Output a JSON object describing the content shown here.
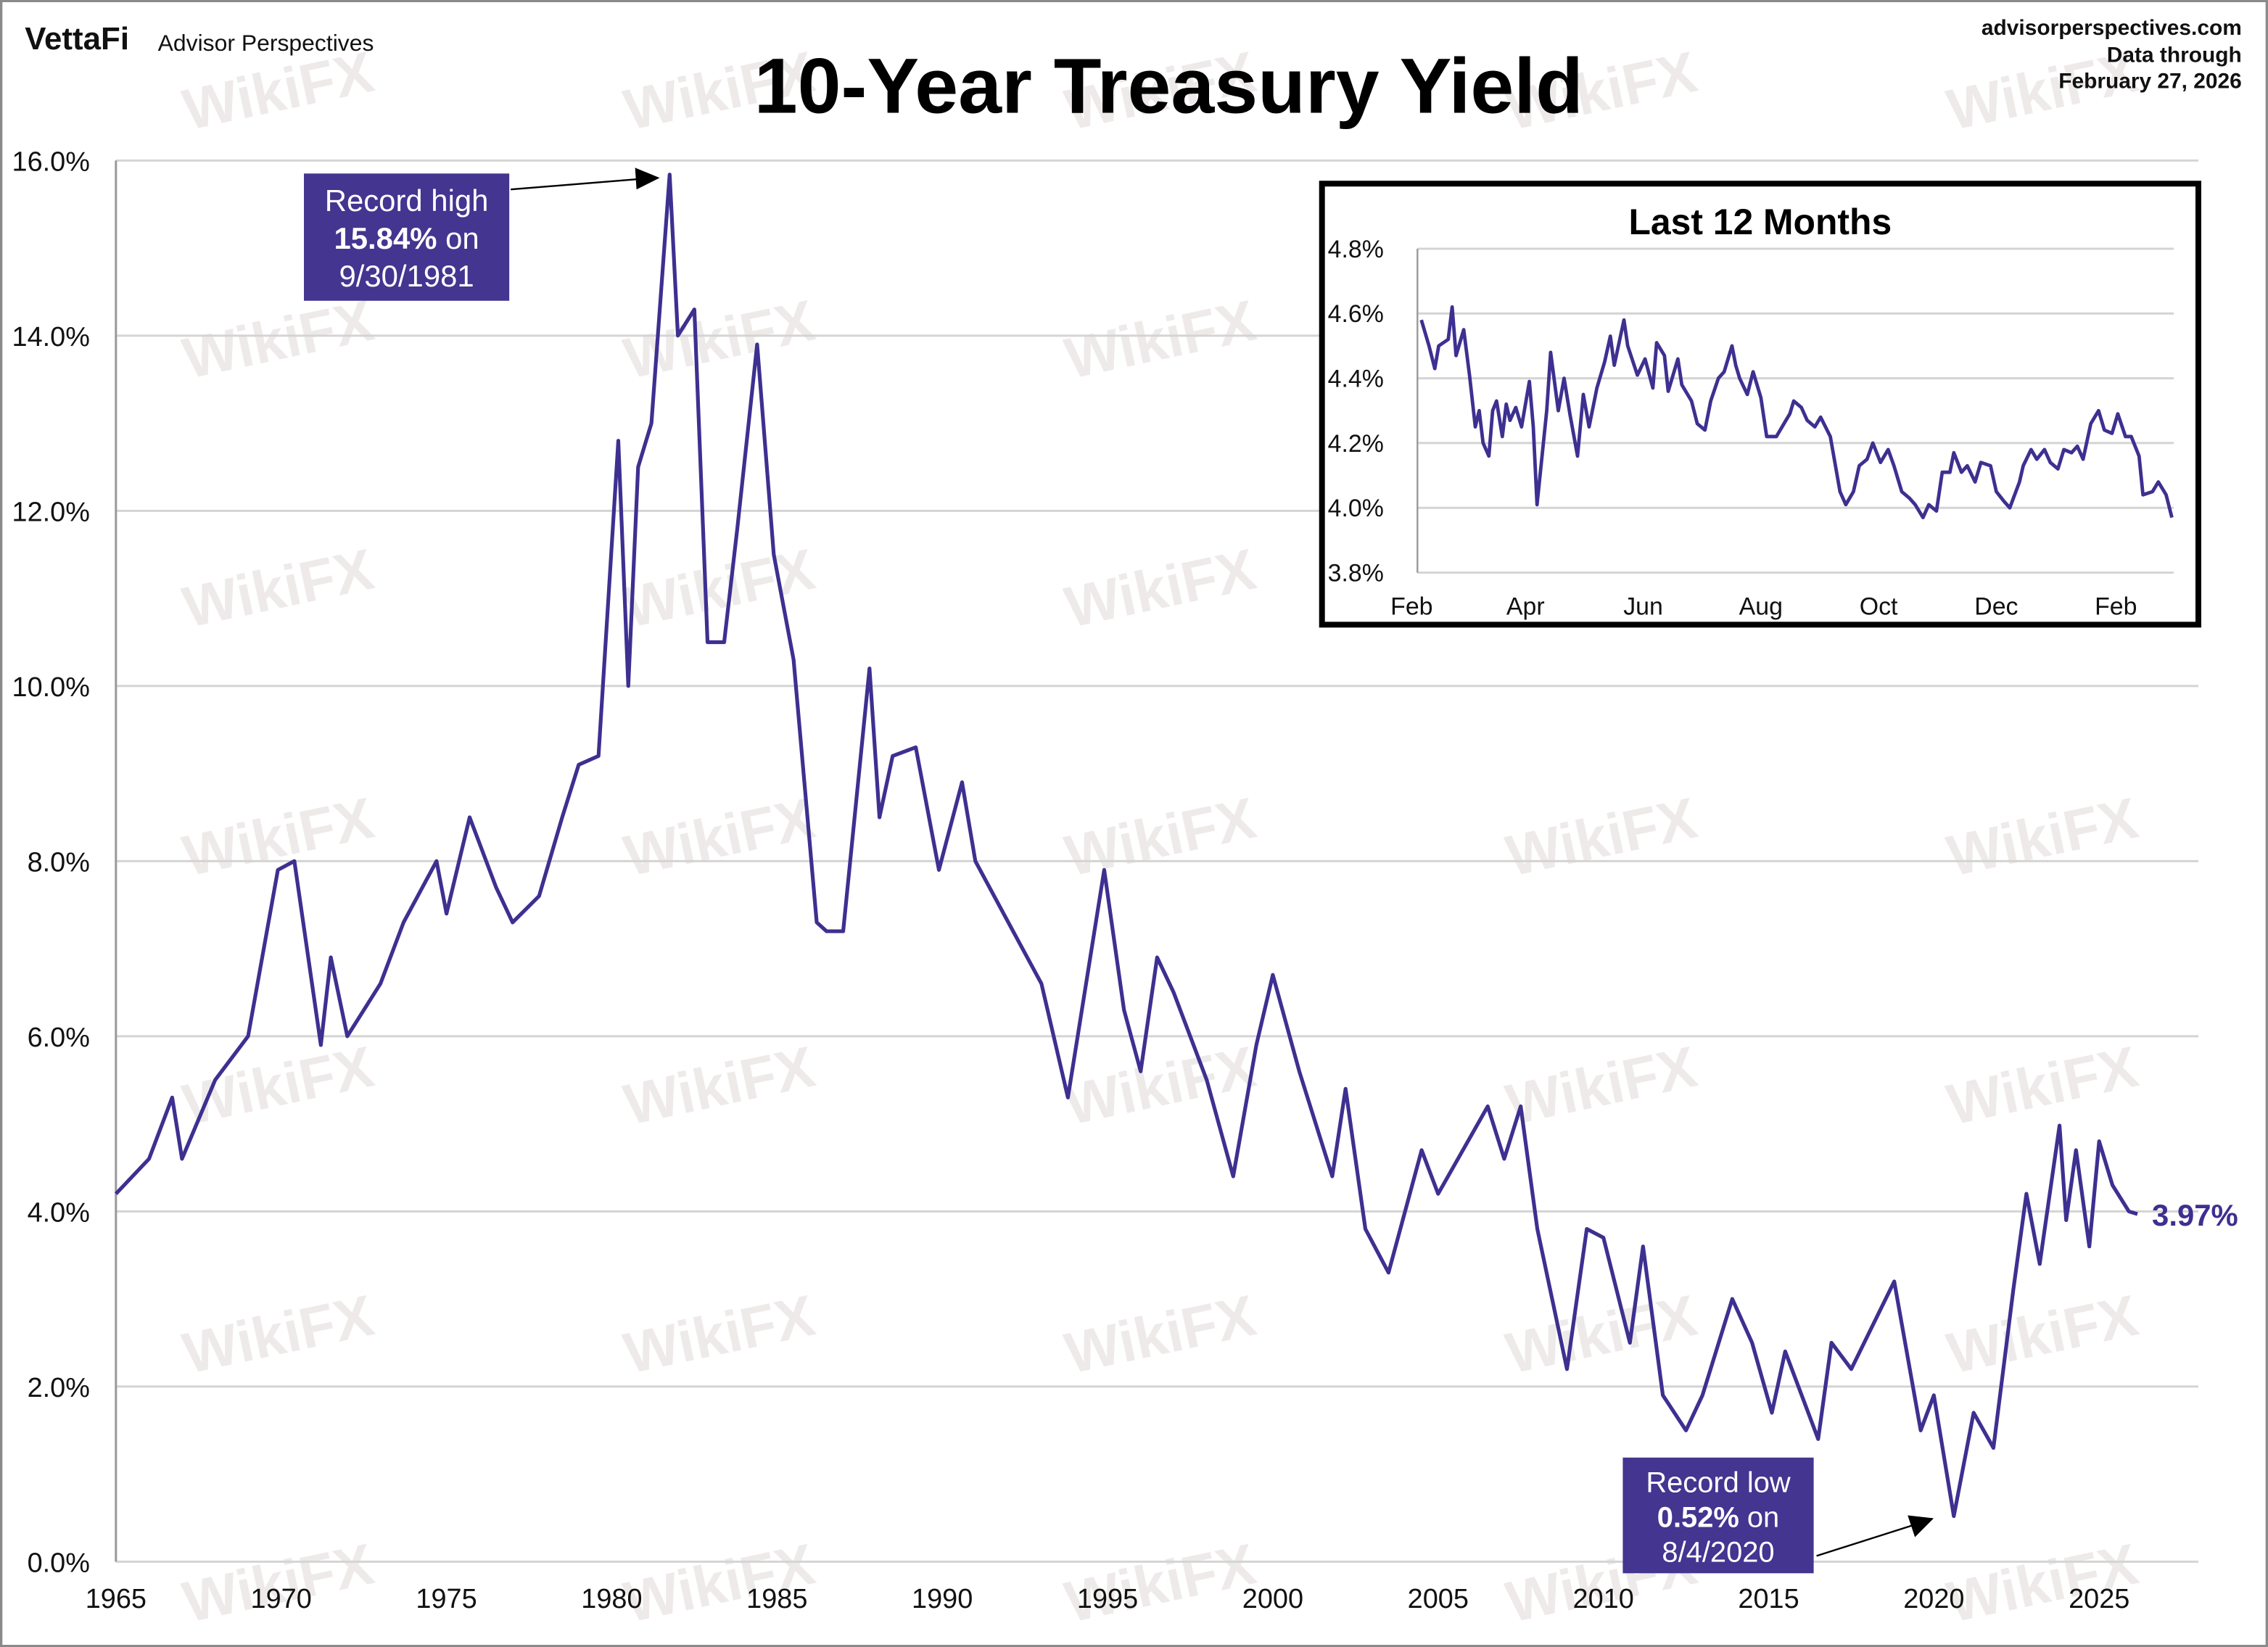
{
  "header": {
    "brand": "VettaFi",
    "brand_sub": "Advisor Perspectives",
    "site": "advisorperspectives.com",
    "data_through_label": "Data through",
    "data_through_date": "February 27, 2026",
    "watermark": "WikiFX"
  },
  "colors": {
    "line": "#3d3090",
    "annotation_box": "#433590",
    "grid": "#d4d4d4"
  },
  "chart_data": [
    {
      "type": "line",
      "title": "10-Year Treasury Yield",
      "xlim": [
        1965,
        2028
      ],
      "ylim": [
        0,
        16
      ],
      "grid": true,
      "x_ticks": [
        "1965",
        "1970",
        "1975",
        "1980",
        "1985",
        "1990",
        "1995",
        "2000",
        "2005",
        "2010",
        "2015",
        "2020",
        "2025"
      ],
      "y_ticks": [
        "0.0%",
        "2.0%",
        "4.0%",
        "6.0%",
        "8.0%",
        "10.0%",
        "12.0%",
        "14.0%",
        "16.0%"
      ],
      "last_value_label": "3.97%",
      "annotations": {
        "high": {
          "line1": "Record high",
          "value": "15.84%",
          "on": " on",
          "date": "9/30/1981",
          "x": 1981.75,
          "y": 15.84
        },
        "low": {
          "line1": "Record low",
          "value": "0.52%",
          "on": " on",
          "date": "8/4/2020",
          "x": 2020.6,
          "y": 0.52
        }
      },
      "series": [
        {
          "values": [
            [
              1965,
              4.2
            ],
            [
              1966,
              4.6
            ],
            [
              1966.7,
              5.3
            ],
            [
              1967,
              4.6
            ],
            [
              1968,
              5.5
            ],
            [
              1969,
              6.0
            ],
            [
              1969.9,
              7.9
            ],
            [
              1970.4,
              8.0
            ],
            [
              1971.2,
              5.9
            ],
            [
              1971.5,
              6.9
            ],
            [
              1972,
              6.0
            ],
            [
              1973,
              6.6
            ],
            [
              1973.7,
              7.3
            ],
            [
              1974.7,
              8.0
            ],
            [
              1975,
              7.4
            ],
            [
              1975.7,
              8.5
            ],
            [
              1976.5,
              7.7
            ],
            [
              1977,
              7.3
            ],
            [
              1977.8,
              7.6
            ],
            [
              1978.5,
              8.5
            ],
            [
              1979,
              9.1
            ],
            [
              1979.6,
              9.2
            ],
            [
              1980.2,
              12.8
            ],
            [
              1980.5,
              10.0
            ],
            [
              1980.8,
              12.5
            ],
            [
              1981.2,
              13.0
            ],
            [
              1981.75,
              15.84
            ],
            [
              1982.0,
              14.0
            ],
            [
              1982.5,
              14.3
            ],
            [
              1982.9,
              10.5
            ],
            [
              1983.4,
              10.5
            ],
            [
              1983.8,
              11.8
            ],
            [
              1984.4,
              13.9
            ],
            [
              1984.9,
              11.5
            ],
            [
              1985.5,
              10.3
            ],
            [
              1986.2,
              7.3
            ],
            [
              1986.5,
              7.2
            ],
            [
              1987.0,
              7.2
            ],
            [
              1987.8,
              10.2
            ],
            [
              1988.1,
              8.5
            ],
            [
              1988.5,
              9.2
            ],
            [
              1989.2,
              9.3
            ],
            [
              1989.9,
              7.9
            ],
            [
              1990.6,
              8.9
            ],
            [
              1991,
              8.0
            ],
            [
              1992,
              7.3
            ],
            [
              1993,
              6.6
            ],
            [
              1993.8,
              5.3
            ],
            [
              1994.9,
              7.9
            ],
            [
              1995.5,
              6.3
            ],
            [
              1996,
              5.6
            ],
            [
              1996.5,
              6.9
            ],
            [
              1997,
              6.5
            ],
            [
              1998,
              5.5
            ],
            [
              1998.8,
              4.4
            ],
            [
              1999.5,
              5.9
            ],
            [
              2000.0,
              6.7
            ],
            [
              2000.8,
              5.6
            ],
            [
              2001.8,
              4.4
            ],
            [
              2002.2,
              5.4
            ],
            [
              2002.8,
              3.8
            ],
            [
              2003.5,
              3.3
            ],
            [
              2004.5,
              4.7
            ],
            [
              2005,
              4.2
            ],
            [
              2006.5,
              5.2
            ],
            [
              2007,
              4.6
            ],
            [
              2007.5,
              5.2
            ],
            [
              2008,
              3.8
            ],
            [
              2008.9,
              2.2
            ],
            [
              2009.5,
              3.8
            ],
            [
              2010,
              3.7
            ],
            [
              2010.8,
              2.5
            ],
            [
              2011.2,
              3.6
            ],
            [
              2011.8,
              1.9
            ],
            [
              2012.5,
              1.5
            ],
            [
              2013,
              1.9
            ],
            [
              2013.9,
              3.0
            ],
            [
              2014.5,
              2.5
            ],
            [
              2015.1,
              1.7
            ],
            [
              2015.5,
              2.4
            ],
            [
              2016.5,
              1.4
            ],
            [
              2016.9,
              2.5
            ],
            [
              2017.5,
              2.2
            ],
            [
              2018.8,
              3.2
            ],
            [
              2019.6,
              1.5
            ],
            [
              2020.0,
              1.9
            ],
            [
              2020.6,
              0.52
            ],
            [
              2021.2,
              1.7
            ],
            [
              2021.8,
              1.3
            ],
            [
              2022.4,
              3.1
            ],
            [
              2022.8,
              4.2
            ],
            [
              2023.2,
              3.4
            ],
            [
              2023.8,
              4.98
            ],
            [
              2024.0,
              3.9
            ],
            [
              2024.3,
              4.7
            ],
            [
              2024.7,
              3.6
            ],
            [
              2025.0,
              4.8
            ],
            [
              2025.4,
              4.3
            ],
            [
              2025.9,
              4.0
            ],
            [
              2026.16,
              3.97
            ]
          ]
        }
      ]
    },
    {
      "type": "line",
      "title": "Last 12 Months",
      "xlim": [
        "2025-02-01",
        "2026-02-28"
      ],
      "ylim": [
        3.8,
        4.8
      ],
      "grid": true,
      "x_ticks": [
        {
          "label": "Feb",
          "date": "2025-02-01"
        },
        {
          "label": "Apr",
          "date": "2025-04-01"
        },
        {
          "label": "Jun",
          "date": "2025-06-01"
        },
        {
          "label": "Aug",
          "date": "2025-08-01"
        },
        {
          "label": "Oct",
          "date": "2025-10-01"
        },
        {
          "label": "Dec",
          "date": "2025-12-01"
        },
        {
          "label": "Feb",
          "date": "2026-02-01"
        }
      ],
      "y_ticks": [
        "3.8%",
        "4.0%",
        "4.2%",
        "4.4%",
        "4.6%",
        "4.8%"
      ],
      "series": [
        {
          "values": [
            [
              "2025-02-03",
              4.58
            ],
            [
              "2025-02-07",
              4.5
            ],
            [
              "2025-02-10",
              4.43
            ],
            [
              "2025-02-12",
              4.5
            ],
            [
              "2025-02-17",
              4.52
            ],
            [
              "2025-02-19",
              4.62
            ],
            [
              "2025-02-21",
              4.47
            ],
            [
              "2025-02-25",
              4.55
            ],
            [
              "2025-02-28",
              4.41
            ],
            [
              "2025-03-03",
              4.25
            ],
            [
              "2025-03-05",
              4.3
            ],
            [
              "2025-03-07",
              4.2
            ],
            [
              "2025-03-10",
              4.16
            ],
            [
              "2025-03-12",
              4.3
            ],
            [
              "2025-03-14",
              4.33
            ],
            [
              "2025-03-17",
              4.22
            ],
            [
              "2025-03-19",
              4.32
            ],
            [
              "2025-03-21",
              4.27
            ],
            [
              "2025-03-24",
              4.31
            ],
            [
              "2025-03-27",
              4.25
            ],
            [
              "2025-03-31",
              4.39
            ],
            [
              "2025-04-02",
              4.25
            ],
            [
              "2025-04-04",
              4.01
            ],
            [
              "2025-04-09",
              4.3
            ],
            [
              "2025-04-11",
              4.48
            ],
            [
              "2025-04-15",
              4.3
            ],
            [
              "2025-04-18",
              4.4
            ],
            [
              "2025-04-21",
              4.29
            ],
            [
              "2025-04-25",
              4.16
            ],
            [
              "2025-04-28",
              4.35
            ],
            [
              "2025-05-01",
              4.25
            ],
            [
              "2025-05-05",
              4.37
            ],
            [
              "2025-05-09",
              4.45
            ],
            [
              "2025-05-12",
              4.53
            ],
            [
              "2025-05-14",
              4.44
            ],
            [
              "2025-05-19",
              4.58
            ],
            [
              "2025-05-21",
              4.5
            ],
            [
              "2025-05-26",
              4.41
            ],
            [
              "2025-05-30",
              4.46
            ],
            [
              "2025-06-03",
              4.37
            ],
            [
              "2025-06-05",
              4.51
            ],
            [
              "2025-06-09",
              4.47
            ],
            [
              "2025-06-11",
              4.36
            ],
            [
              "2025-06-16",
              4.46
            ],
            [
              "2025-06-18",
              4.38
            ],
            [
              "2025-06-23",
              4.33
            ],
            [
              "2025-06-26",
              4.26
            ],
            [
              "2025-06-30",
              4.24
            ],
            [
              "2025-07-03",
              4.33
            ],
            [
              "2025-07-07",
              4.4
            ],
            [
              "2025-07-10",
              4.42
            ],
            [
              "2025-07-14",
              4.5
            ],
            [
              "2025-07-16",
              4.44
            ],
            [
              "2025-07-18",
              4.4
            ],
            [
              "2025-07-22",
              4.35
            ],
            [
              "2025-07-25",
              4.42
            ],
            [
              "2025-07-29",
              4.34
            ],
            [
              "2025-08-01",
              4.22
            ],
            [
              "2025-08-06",
              4.22
            ],
            [
              "2025-08-11",
              4.27
            ],
            [
              "2025-08-13",
              4.29
            ],
            [
              "2025-08-15",
              4.33
            ],
            [
              "2025-08-19",
              4.31
            ],
            [
              "2025-08-22",
              4.27
            ],
            [
              "2025-08-26",
              4.25
            ],
            [
              "2025-08-29",
              4.28
            ],
            [
              "2025-09-03",
              4.22
            ],
            [
              "2025-09-08",
              4.05
            ],
            [
              "2025-09-11",
              4.01
            ],
            [
              "2025-09-15",
              4.05
            ],
            [
              "2025-09-18",
              4.13
            ],
            [
              "2025-09-22",
              4.15
            ],
            [
              "2025-09-25",
              4.2
            ],
            [
              "2025-09-29",
              4.14
            ],
            [
              "2025-10-03",
              4.18
            ],
            [
              "2025-10-06",
              4.13
            ],
            [
              "2025-10-10",
              4.05
            ],
            [
              "2025-10-14",
              4.03
            ],
            [
              "2025-10-17",
              4.01
            ],
            [
              "2025-10-21",
              3.97
            ],
            [
              "2025-10-24",
              4.01
            ],
            [
              "2025-10-28",
              3.99
            ],
            [
              "2025-10-31",
              4.11
            ],
            [
              "2025-11-04",
              4.11
            ],
            [
              "2025-11-06",
              4.17
            ],
            [
              "2025-11-10",
              4.11
            ],
            [
              "2025-11-13",
              4.13
            ],
            [
              "2025-11-17",
              4.08
            ],
            [
              "2025-11-20",
              4.14
            ],
            [
              "2025-11-25",
              4.13
            ],
            [
              "2025-11-28",
              4.05
            ],
            [
              "2025-12-02",
              4.02
            ],
            [
              "2025-12-05",
              4.0
            ],
            [
              "2025-12-10",
              4.08
            ],
            [
              "2025-12-12",
              4.13
            ],
            [
              "2025-12-16",
              4.18
            ],
            [
              "2025-12-19",
              4.15
            ],
            [
              "2025-12-23",
              4.18
            ],
            [
              "2025-12-26",
              4.14
            ],
            [
              "2025-12-30",
              4.12
            ],
            [
              "2026-01-02",
              4.18
            ],
            [
              "2026-01-06",
              4.17
            ],
            [
              "2026-01-09",
              4.19
            ],
            [
              "2026-01-12",
              4.15
            ],
            [
              "2026-01-16",
              4.26
            ],
            [
              "2026-01-20",
              4.3
            ],
            [
              "2026-01-23",
              4.24
            ],
            [
              "2026-01-27",
              4.23
            ],
            [
              "2026-01-30",
              4.29
            ],
            [
              "2026-02-03",
              4.22
            ],
            [
              "2026-02-06",
              4.22
            ],
            [
              "2026-02-10",
              4.16
            ],
            [
              "2026-02-12",
              4.04
            ],
            [
              "2026-02-17",
              4.05
            ],
            [
              "2026-02-20",
              4.08
            ],
            [
              "2026-02-24",
              4.04
            ],
            [
              "2026-02-27",
              3.97
            ]
          ]
        }
      ]
    }
  ]
}
